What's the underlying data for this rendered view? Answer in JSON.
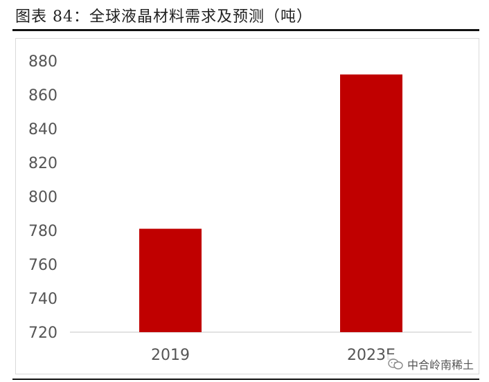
{
  "figure": {
    "title": "图表 84：全球液晶材料需求及预测（吨）",
    "watermark": "中合岭南稀土"
  },
  "colors": {
    "bar": "#c00000",
    "axis": "#d9d9d9",
    "text": "#555555"
  },
  "chart_data": {
    "type": "bar",
    "title": "",
    "xlabel": "",
    "ylabel": "",
    "categories": [
      "2019",
      "2023E"
    ],
    "values": [
      781,
      872
    ],
    "ylim": [
      720,
      880
    ],
    "yticks": [
      720,
      740,
      760,
      780,
      800,
      820,
      840,
      860,
      880
    ],
    "grid": false,
    "legend": "none"
  }
}
